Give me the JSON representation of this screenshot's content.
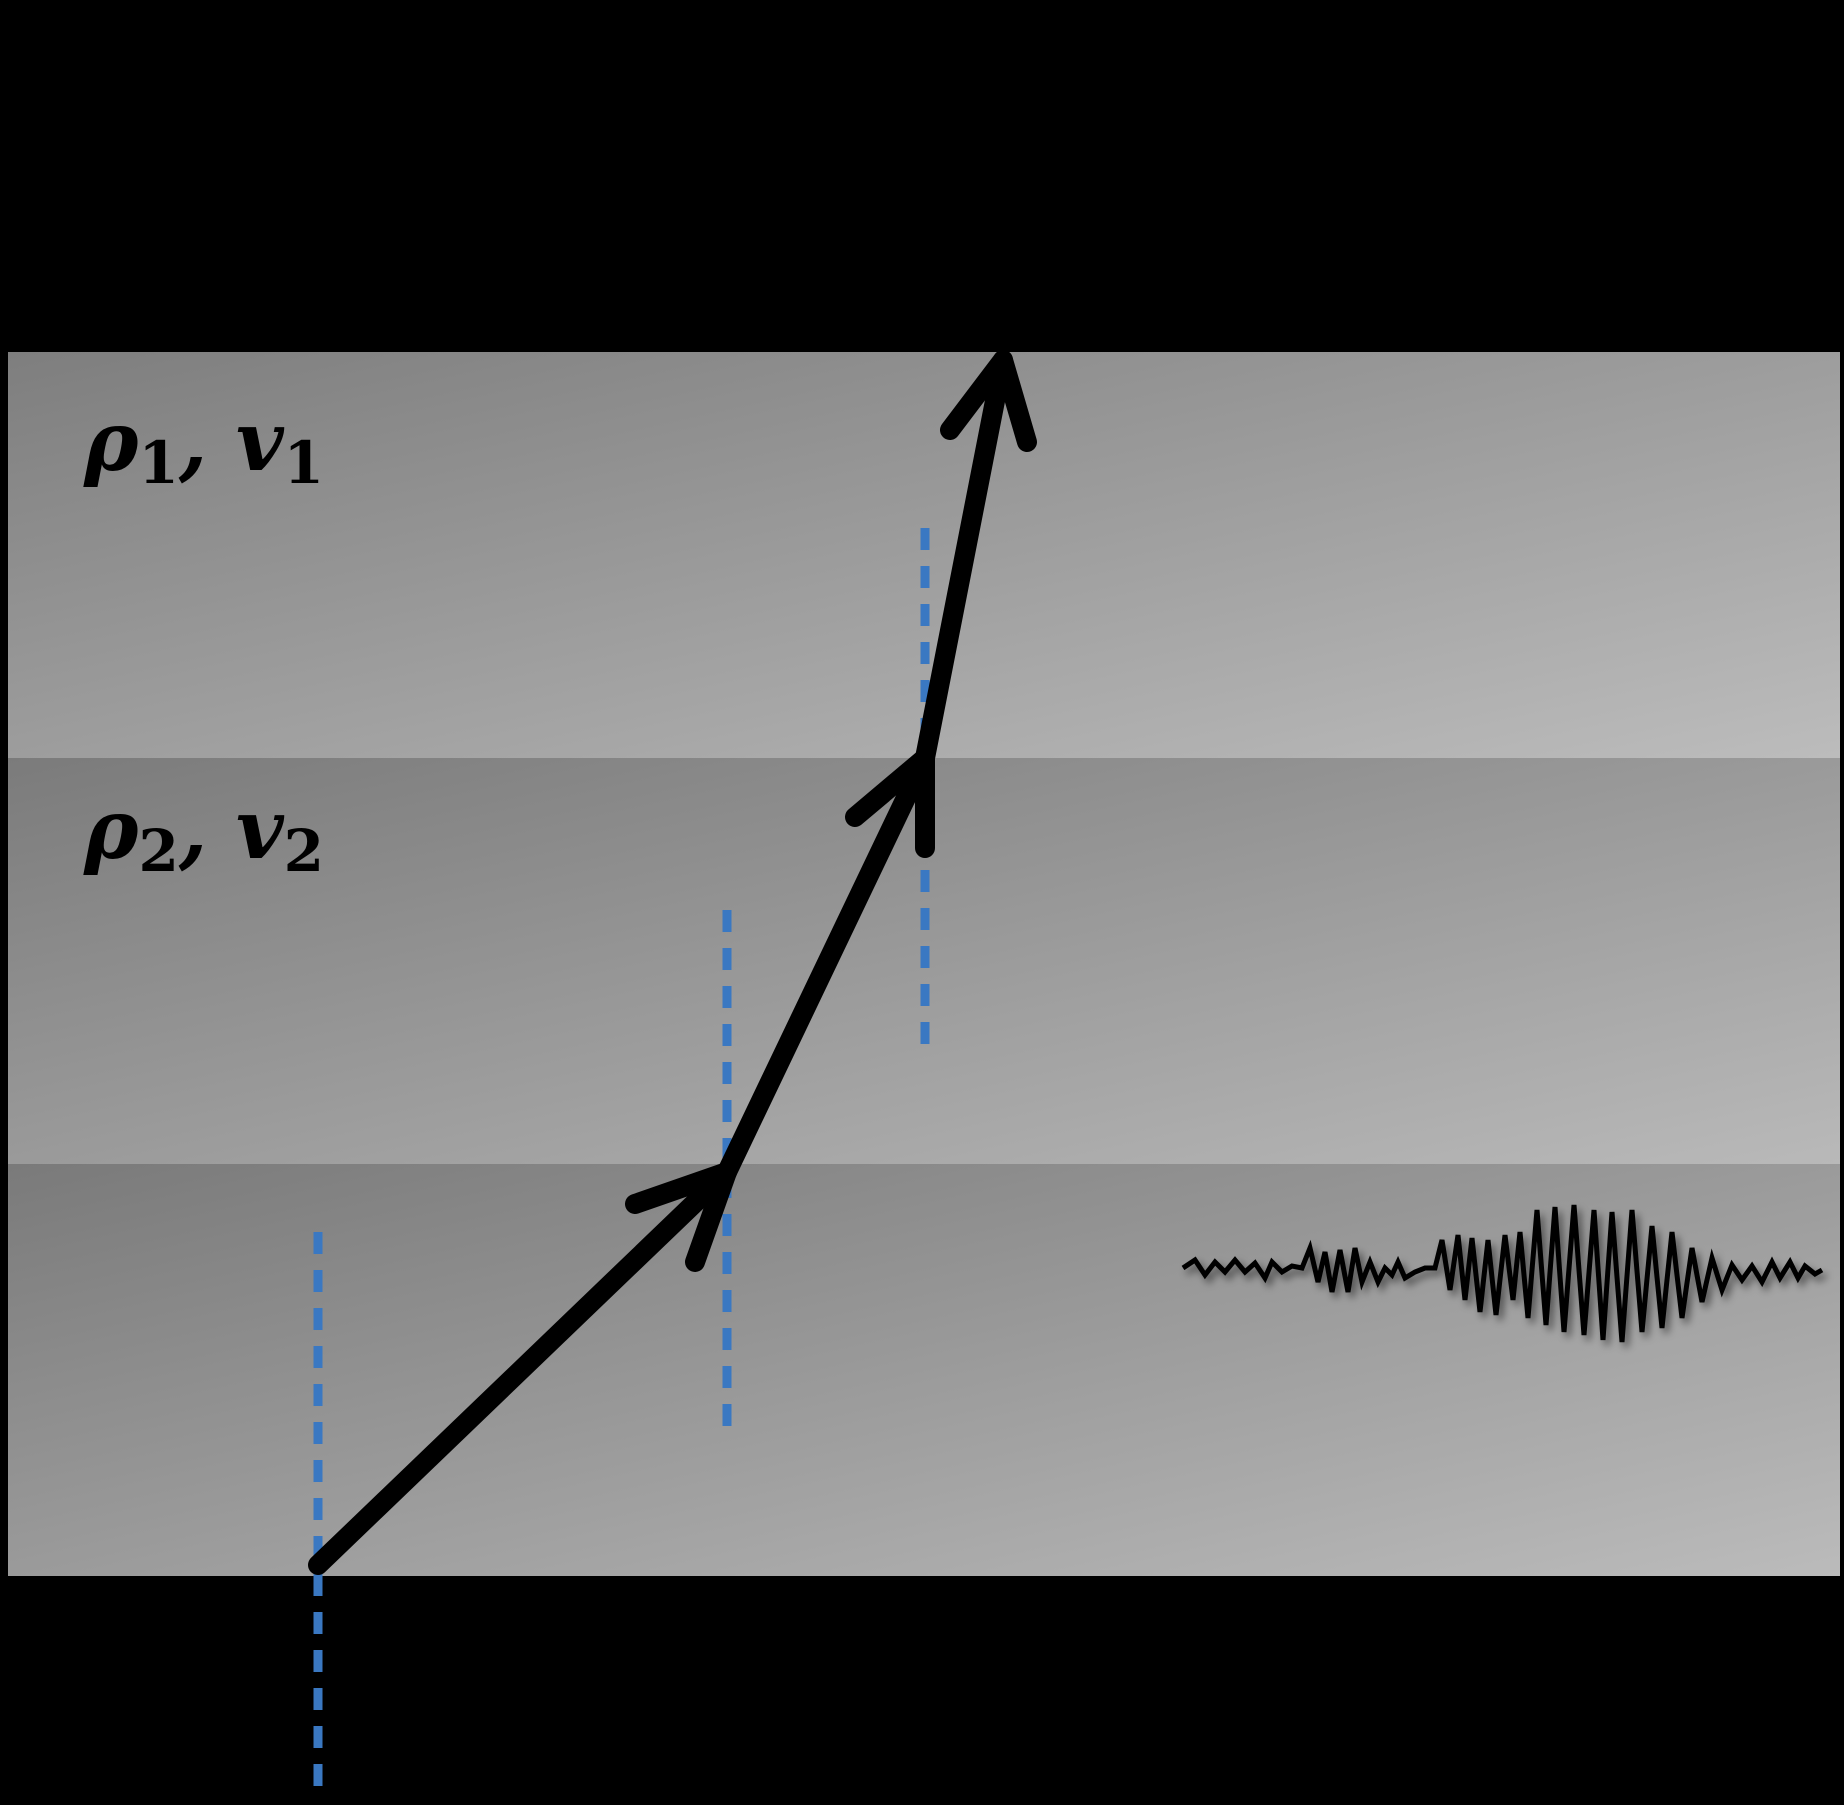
{
  "colors": {
    "background": "#000000",
    "layer_dark": "#7b7b7b",
    "layer_light": "#bdbdbd",
    "ray": "#000000",
    "normal_dashed": "#3a78c2"
  },
  "layers": [
    {
      "density_symbol": "ρ",
      "velocity_symbol": "v",
      "index": "1",
      "separator": ", "
    },
    {
      "density_symbol": "ρ",
      "velocity_symbol": "v",
      "index": "2",
      "separator": ", "
    },
    {
      "density_symbol": "",
      "velocity_symbol": "",
      "index": "",
      "separator": ""
    }
  ],
  "icons": [
    "arrow-icon",
    "seismogram-icon"
  ]
}
